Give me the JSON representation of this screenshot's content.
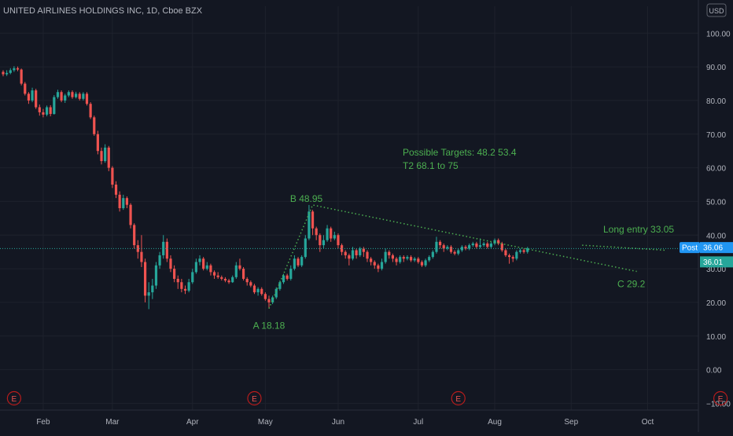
{
  "header": {
    "symbol_title": "UNITED AIRLINES HOLDINGS INC, 1D, Cboe BZX",
    "currency": "USD"
  },
  "colors": {
    "background": "#131722",
    "grid": "#1e222d",
    "up": "#26a69a",
    "down": "#ef5350",
    "annotation": "#4caf50",
    "price_line": "#26a69a",
    "earnings": "#b71c1c",
    "badge": "#2196f3"
  },
  "chart_data": {
    "type": "candlestick",
    "ylim": [
      -12,
      108
    ],
    "y_ticks": [
      -10,
      0,
      10,
      20,
      30,
      40,
      50,
      60,
      70,
      80,
      90,
      100
    ],
    "y_tick_labels": [
      "−10.00",
      "0.00",
      "10.00",
      "20.00",
      "30.00",
      "40.00",
      "50.00",
      "60.00",
      "70.00",
      "80.00",
      "90.00",
      "100.00"
    ],
    "x_ticks": [
      {
        "label": "Feb",
        "day": 11
      },
      {
        "label": "Mar",
        "day": 30
      },
      {
        "label": "Apr",
        "day": 52
      },
      {
        "label": "May",
        "day": 72
      },
      {
        "label": "Jun",
        "day": 92
      },
      {
        "label": "Jul",
        "day": 114
      },
      {
        "label": "Aug",
        "day": 135
      },
      {
        "label": "Sep",
        "day": 156
      },
      {
        "label": "Oct",
        "day": 177
      }
    ],
    "candles": [
      [
        88.5,
        87.8,
        89.0,
        87.2
      ],
      [
        87.8,
        88.2,
        89.0,
        87.3
      ],
      [
        88.2,
        89.0,
        89.6,
        87.8
      ],
      [
        89.0,
        89.6,
        90.2,
        88.5
      ],
      [
        89.6,
        89.2,
        90.1,
        88.7
      ],
      [
        89.2,
        85.0,
        89.5,
        84.5
      ],
      [
        85.0,
        82.0,
        85.5,
        81.5
      ],
      [
        82.0,
        80.0,
        82.5,
        79.0
      ],
      [
        80.0,
        83.0,
        83.8,
        79.5
      ],
      [
        83.0,
        78.0,
        83.5,
        77.5
      ],
      [
        78.0,
        76.5,
        78.8,
        75.5
      ],
      [
        76.5,
        75.8,
        77.5,
        75.0
      ],
      [
        75.8,
        78.0,
        78.5,
        75.3
      ],
      [
        78.0,
        76.0,
        78.6,
        75.3
      ],
      [
        76.0,
        81.0,
        81.6,
        75.8
      ],
      [
        81.0,
        82.5,
        83.2,
        80.5
      ],
      [
        82.5,
        80.0,
        83.0,
        79.5
      ],
      [
        80.0,
        81.5,
        82.0,
        79.3
      ],
      [
        81.5,
        82.5,
        83.0,
        81.0
      ],
      [
        82.5,
        81.0,
        83.0,
        80.5
      ],
      [
        81.0,
        82.0,
        82.6,
        80.6
      ],
      [
        82.0,
        80.5,
        82.5,
        80.0
      ],
      [
        80.5,
        82.0,
        82.5,
        80.0
      ],
      [
        82.0,
        79.0,
        82.5,
        78.5
      ],
      [
        79.0,
        75.0,
        79.5,
        74.5
      ],
      [
        75.0,
        70.0,
        75.5,
        69.5
      ],
      [
        70.0,
        65.0,
        71.0,
        64.0
      ],
      [
        65.0,
        62.0,
        66.0,
        61.0
      ],
      [
        62.0,
        66.0,
        67.0,
        61.5
      ],
      [
        66.0,
        60.0,
        66.5,
        59.0
      ],
      [
        60.0,
        55.0,
        60.5,
        54.0
      ],
      [
        55.0,
        52.0,
        56.0,
        51.0
      ],
      [
        52.0,
        48.0,
        53.0,
        47.0
      ],
      [
        48.0,
        51.0,
        52.0,
        47.5
      ],
      [
        51.0,
        49.0,
        51.5,
        48.0
      ],
      [
        49.0,
        43.0,
        49.5,
        42.0
      ],
      [
        43.0,
        37.0,
        43.5,
        36.0
      ],
      [
        37.0,
        35.0,
        38.5,
        33.0
      ],
      [
        35.0,
        32.0,
        40.0,
        30.5
      ],
      [
        32.0,
        22.0,
        33.0,
        20.0
      ],
      [
        22.0,
        23.0,
        26.0,
        18.0
      ],
      [
        23.0,
        25.0,
        27.0,
        21.0
      ],
      [
        25.0,
        31.0,
        32.0,
        24.0
      ],
      [
        31.0,
        34.0,
        35.0,
        30.0
      ],
      [
        34.0,
        38.0,
        40.0,
        33.0
      ],
      [
        38.0,
        33.0,
        39.0,
        32.0
      ],
      [
        33.0,
        30.0,
        34.0,
        29.0
      ],
      [
        30.0,
        27.0,
        31.0,
        26.0
      ],
      [
        27.0,
        26.0,
        28.0,
        24.0
      ],
      [
        26.0,
        24.0,
        27.0,
        23.0
      ],
      [
        24.0,
        23.5,
        25.0,
        22.5
      ],
      [
        23.5,
        26.0,
        27.0,
        23.0
      ],
      [
        26.0,
        29.0,
        30.0,
        25.5
      ],
      [
        29.0,
        32.0,
        33.0,
        28.5
      ],
      [
        32.0,
        33.0,
        34.0,
        31.0
      ],
      [
        33.0,
        30.0,
        33.5,
        29.5
      ],
      [
        30.0,
        31.0,
        32.0,
        29.5
      ],
      [
        31.0,
        29.0,
        31.5,
        28.0
      ],
      [
        29.0,
        28.0,
        29.5,
        27.0
      ],
      [
        28.0,
        27.5,
        29.0,
        27.0
      ],
      [
        27.5,
        27.0,
        28.0,
        26.5
      ],
      [
        27.0,
        26.5,
        27.5,
        26.0
      ],
      [
        26.5,
        26.0,
        27.0,
        25.5
      ],
      [
        26.0,
        27.5,
        28.0,
        25.8
      ],
      [
        27.5,
        31.0,
        32.0,
        27.0
      ],
      [
        31.0,
        30.0,
        33.0,
        29.5
      ],
      [
        30.0,
        27.0,
        30.5,
        26.5
      ],
      [
        27.0,
        26.0,
        27.5,
        25.0
      ],
      [
        26.0,
        25.0,
        26.5,
        24.5
      ],
      [
        25.0,
        23.0,
        25.5,
        22.5
      ],
      [
        23.0,
        24.0,
        24.5,
        22.0
      ],
      [
        24.0,
        22.5,
        24.5,
        22.0
      ],
      [
        22.5,
        21.0,
        23.0,
        20.5
      ],
      [
        21.0,
        20.0,
        22.0,
        18.18
      ],
      [
        20.0,
        21.5,
        22.0,
        19.5
      ],
      [
        21.5,
        24.0,
        24.5,
        21.0
      ],
      [
        24.0,
        26.0,
        26.5,
        23.5
      ],
      [
        26.0,
        28.0,
        28.5,
        25.5
      ],
      [
        28.0,
        27.0,
        28.5,
        26.5
      ],
      [
        27.0,
        30.0,
        31.0,
        26.5
      ],
      [
        30.0,
        33.0,
        34.0,
        29.5
      ],
      [
        33.0,
        31.0,
        33.5,
        30.5
      ],
      [
        31.0,
        33.5,
        34.0,
        30.5
      ],
      [
        33.5,
        39.0,
        40.0,
        33.0
      ],
      [
        39.0,
        47.0,
        48.95,
        38.5
      ],
      [
        47.0,
        42.0,
        47.5,
        40.0
      ],
      [
        42.0,
        40.0,
        42.5,
        38.5
      ],
      [
        40.0,
        37.0,
        40.5,
        35.0
      ],
      [
        37.0,
        38.5,
        40.0,
        36.0
      ],
      [
        38.5,
        42.0,
        43.0,
        38.0
      ],
      [
        42.0,
        39.0,
        42.5,
        38.0
      ],
      [
        39.0,
        40.0,
        41.0,
        38.5
      ],
      [
        40.0,
        37.0,
        40.5,
        36.0
      ],
      [
        37.0,
        35.0,
        37.5,
        34.0
      ],
      [
        35.0,
        34.0,
        35.5,
        33.0
      ],
      [
        34.0,
        33.0,
        34.5,
        31.0
      ],
      [
        33.0,
        35.5,
        36.5,
        32.5
      ],
      [
        35.5,
        34.0,
        36.0,
        33.0
      ],
      [
        34.0,
        36.0,
        36.5,
        33.5
      ],
      [
        36.0,
        35.0,
        36.5,
        33.5
      ],
      [
        35.0,
        33.0,
        35.5,
        32.0
      ],
      [
        33.0,
        32.0,
        33.5,
        31.0
      ],
      [
        32.0,
        31.0,
        32.5,
        30.0
      ],
      [
        31.0,
        30.0,
        31.5,
        29.0
      ],
      [
        30.0,
        32.0,
        33.0,
        29.5
      ],
      [
        32.0,
        35.0,
        36.0,
        31.5
      ],
      [
        35.0,
        34.0,
        35.5,
        33.0
      ],
      [
        34.0,
        33.0,
        34.5,
        32.0
      ],
      [
        33.0,
        32.0,
        33.5,
        31.0
      ],
      [
        32.0,
        33.5,
        34.0,
        31.5
      ],
      [
        33.5,
        33.0,
        34.0,
        32.0
      ],
      [
        33.0,
        33.5,
        34.0,
        32.5
      ],
      [
        33.5,
        32.5,
        34.0,
        32.0
      ],
      [
        32.5,
        33.0,
        33.5,
        32.0
      ],
      [
        33.0,
        32.0,
        33.5,
        31.5
      ],
      [
        32.0,
        31.0,
        32.5,
        30.5
      ],
      [
        31.0,
        32.5,
        33.0,
        30.5
      ],
      [
        32.5,
        33.5,
        34.0,
        32.0
      ],
      [
        33.5,
        35.0,
        35.5,
        33.0
      ],
      [
        35.0,
        38.0,
        39.5,
        34.5
      ],
      [
        38.0,
        37.0,
        38.5,
        36.0
      ],
      [
        37.0,
        36.0,
        37.5,
        35.0
      ],
      [
        36.0,
        36.5,
        37.0,
        35.5
      ],
      [
        36.5,
        35.0,
        37.0,
        34.5
      ],
      [
        35.0,
        34.5,
        35.5,
        34.0
      ],
      [
        34.5,
        35.5,
        36.0,
        34.0
      ],
      [
        35.5,
        36.5,
        37.0,
        35.0
      ],
      [
        36.5,
        36.0,
        37.0,
        35.5
      ],
      [
        36.0,
        37.0,
        37.5,
        35.5
      ],
      [
        37.0,
        37.5,
        38.0,
        36.5
      ],
      [
        37.5,
        36.5,
        38.0,
        36.0
      ],
      [
        36.5,
        37.0,
        39.0,
        36.0
      ],
      [
        37.0,
        37.5,
        38.0,
        36.5
      ],
      [
        37.5,
        36.5,
        38.0,
        36.0
      ],
      [
        36.5,
        37.5,
        38.0,
        36.0
      ],
      [
        37.5,
        38.5,
        39.0,
        37.0
      ],
      [
        38.5,
        37.5,
        39.0,
        37.0
      ],
      [
        37.5,
        35.5,
        38.0,
        35.0
      ],
      [
        35.5,
        34.0,
        36.0,
        33.5
      ],
      [
        34.0,
        33.5,
        34.5,
        31.5
      ],
      [
        33.5,
        33.0,
        34.0,
        32.0
      ],
      [
        33.0,
        35.0,
        35.5,
        32.5
      ],
      [
        35.0,
        35.5,
        36.0,
        34.5
      ],
      [
        35.5,
        35.0,
        36.0,
        34.5
      ],
      [
        35.0,
        36.06,
        36.5,
        34.5
      ]
    ],
    "price_line": 36.01,
    "last_price": 36.06,
    "price_labels": {
      "post_label": "Post",
      "post_value": "36.06",
      "last_value": "36.01"
    },
    "pattern": {
      "A": {
        "day": 73,
        "price": 18.18,
        "label": "A 18.18"
      },
      "B": {
        "day": 85,
        "price": 48.95,
        "label": "B 48.95"
      },
      "C": {
        "day": 174,
        "price": 29.2,
        "label": "C 29.2"
      },
      "entry_from": {
        "day": 159,
        "price": 37.0
      },
      "entry_to": {
        "day": 182,
        "price": 35.5
      }
    },
    "annotations": {
      "targets": "Possible Targets:  48.2  53.4",
      "t2": "T2   68.1 to 75",
      "long_entry": "Long entry  33.05"
    },
    "earnings_markers": [
      {
        "label": "E",
        "day": 3
      },
      {
        "label": "E",
        "day": 69
      },
      {
        "label": "E",
        "day": 125
      },
      {
        "label": "E",
        "day": 197
      }
    ]
  }
}
